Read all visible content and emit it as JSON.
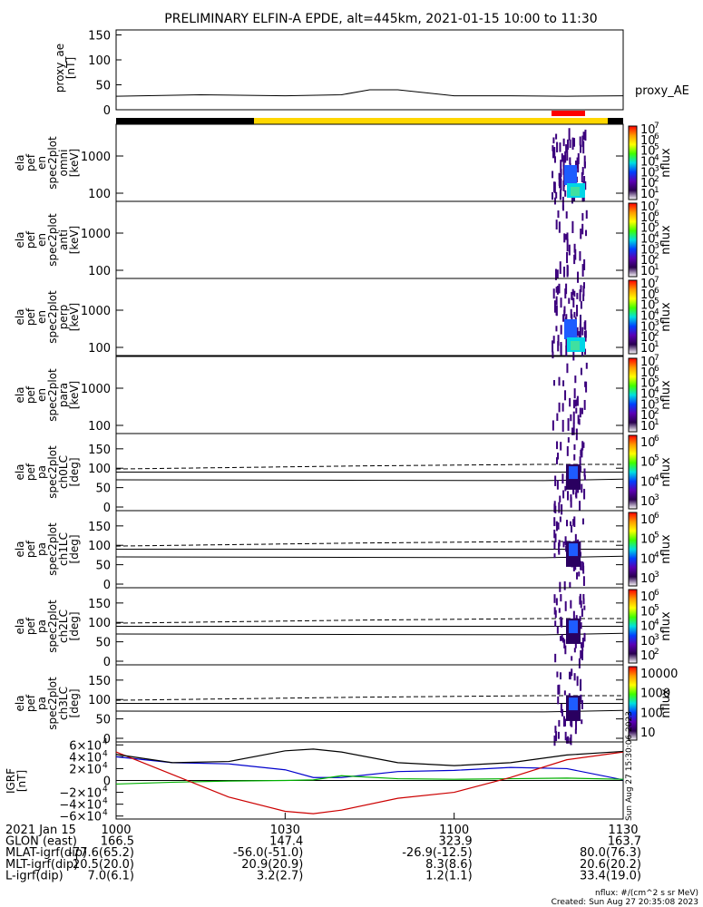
{
  "title": "PRELIMINARY ELFIN-A EPDE, alt=445km, 2021-01-15 10:00 to 11:30",
  "colors": {
    "spec_low": "#3b007d",
    "spec_mid": "#1e5cff",
    "spec_hi": "#00d5e6",
    "bar_black": "#000000",
    "bar_yellow": "#ffd700",
    "bar_red": "#ff0000",
    "bx": "#0000cc",
    "by": "#00b000",
    "bz": "#cc0000",
    "bmag": "#000000"
  },
  "proxy_ae": {
    "ylabel_lines": [
      "proxy_ae",
      "[nT]"
    ],
    "ticks": [
      "0",
      "50",
      "100",
      "150"
    ],
    "legend": "proxy_AE",
    "ylim": [
      0,
      160
    ]
  },
  "energy_panels": [
    {
      "label_lines": [
        "ela",
        "pef",
        "en",
        "spec2plot",
        "omni",
        "[keV]"
      ],
      "ticks": [
        "100",
        "1000"
      ],
      "cbar": {
        "mant": [
          "10",
          "10",
          "10",
          "10",
          "10",
          "10",
          "10"
        ],
        "exps": [
          "1",
          "2",
          "3",
          "4",
          "5",
          "6",
          "7"
        ],
        "label": "nflux"
      },
      "intensity": 1.0
    },
    {
      "label_lines": [
        "ela",
        "pef",
        "en",
        "spec2plot",
        "anti",
        "[keV]"
      ],
      "ticks": [
        "100",
        "1000"
      ],
      "cbar": {
        "mant": [
          "10",
          "10",
          "10",
          "10",
          "10",
          "10",
          "10"
        ],
        "exps": [
          "1",
          "2",
          "3",
          "4",
          "5",
          "6",
          "7"
        ],
        "label": "nflux"
      },
      "intensity": 0.25
    },
    {
      "label_lines": [
        "ela",
        "pef",
        "en",
        "spec2plot",
        "perp",
        "[keV]"
      ],
      "ticks": [
        "100",
        "1000"
      ],
      "cbar": {
        "mant": [
          "10",
          "10",
          "10",
          "10",
          "10",
          "10",
          "10"
        ],
        "exps": [
          "1",
          "2",
          "3",
          "4",
          "5",
          "6",
          "7"
        ],
        "label": "nflux"
      },
      "intensity": 0.95
    },
    {
      "label_lines": [
        "ela",
        "pef",
        "en",
        "spec2plot",
        "para",
        "[keV]"
      ],
      "ticks": [
        "100",
        "1000"
      ],
      "cbar": {
        "mant": [
          "10",
          "10",
          "10",
          "10",
          "10",
          "10",
          "10"
        ],
        "exps": [
          "1",
          "2",
          "3",
          "4",
          "5",
          "6",
          "7"
        ],
        "label": "nflux"
      },
      "intensity": 0.3
    }
  ],
  "pa_panels": [
    {
      "label_lines": [
        "ela",
        "pef",
        "pa",
        "spec2plot",
        "ch0LC",
        "[deg]"
      ],
      "ticks": [
        "0",
        "50",
        "100",
        "150"
      ],
      "cbar": {
        "mant": [
          "10",
          "10",
          "10",
          "10"
        ],
        "exps": [
          "3",
          "4",
          "5",
          "6"
        ],
        "label": "nflux"
      }
    },
    {
      "label_lines": [
        "ela",
        "pef",
        "pa",
        "spec2plot",
        "ch1LC",
        "[deg]"
      ],
      "ticks": [
        "0",
        "50",
        "100",
        "150"
      ],
      "cbar": {
        "mant": [
          "10",
          "10",
          "10",
          "10"
        ],
        "exps": [
          "3",
          "4",
          "5",
          "6"
        ],
        "label": "nflux"
      }
    },
    {
      "label_lines": [
        "ela",
        "pef",
        "pa",
        "spec2plot",
        "ch2LC",
        "[deg]"
      ],
      "ticks": [
        "0",
        "50",
        "100",
        "150"
      ],
      "cbar": {
        "mant": [
          "10",
          "10",
          "10",
          "10",
          "10"
        ],
        "exps": [
          "2",
          "3",
          "4",
          "5",
          "6"
        ],
        "label": "nflux"
      }
    },
    {
      "label_lines": [
        "ela",
        "pef",
        "pa",
        "spec2plot",
        "ch3LC",
        "[deg]"
      ],
      "ticks": [
        "0",
        "50",
        "100",
        "150"
      ],
      "cbar": {
        "plain": [
          "10",
          "100",
          "1000",
          "10000"
        ],
        "label": "nflux"
      }
    }
  ],
  "igrf": {
    "ylabel_lines": [
      "IGRF",
      "[nT]"
    ],
    "ticks": [
      {
        "m": "6×10",
        "e": "4"
      },
      {
        "m": "4×10",
        "e": "4"
      },
      {
        "m": "2×10",
        "e": "4"
      },
      {
        "m": "0",
        "e": ""
      },
      {
        "m": "−2×10",
        "e": "4"
      },
      {
        "m": "−4×10",
        "e": "4"
      },
      {
        "m": "−6×10",
        "e": "4"
      }
    ],
    "side_note": "Sun Aug 27 15:30:06 2023",
    "ylim": [
      -65000,
      65000
    ]
  },
  "x_axis": {
    "ticks": [
      "1000",
      "1030",
      "1100",
      "1130"
    ],
    "rows": [
      {
        "label": "2021 Jan 15",
        "vals": [
          "",
          "",
          "",
          ""
        ]
      },
      {
        "label": "GLON (east)",
        "vals": [
          "166.5",
          "147.4",
          "323.9",
          "163.7"
        ]
      },
      {
        "label": "MLAT-igrf(dip)",
        "vals": [
          "-77.6(65.2)",
          "-56.0(-51.0)",
          "-26.9(-12.5)",
          "80.0(76.3)"
        ]
      },
      {
        "label": "MLT-igrf(dip)",
        "vals": [
          "20.5(20.0)",
          "20.9(20.9)",
          "8.3(8.6)",
          "20.6(20.2)"
        ]
      },
      {
        "label": "L-igrf(dip)",
        "vals": [
          "7.0(6.1)",
          "3.2(2.7)",
          "1.2(1.1)",
          "33.4(19.0)"
        ]
      }
    ]
  },
  "footer": {
    "units": "nflux: #/(cm^2 s sr MeV)",
    "created": "Created: Sun Aug 27 20:35:08 2023"
  },
  "chart_data": {
    "type": "line",
    "title": "PRELIMINARY ELFIN-A EPDE, alt=445km, 2021-01-15 10:00 to 11:30",
    "x_ticks": [
      "1000",
      "1030",
      "1100",
      "1130"
    ],
    "proxy_ae": {
      "x": [
        "10:00",
        "10:15",
        "10:30",
        "10:40",
        "10:45",
        "10:50",
        "11:00",
        "11:10",
        "11:20",
        "11:30"
      ],
      "values": [
        27,
        30,
        28,
        30,
        40,
        40,
        28,
        28,
        27,
        28
      ]
    },
    "igrf_series": [
      {
        "values_x": [
          "10:00",
          "10:10",
          "10:20",
          "10:30",
          "10:35",
          "10:40",
          "10:50",
          "11:00",
          "11:10",
          "11:20",
          "11:30"
        ],
        "values": [
          40000,
          30000,
          28000,
          18000,
          5000,
          5000,
          15000,
          17000,
          22000,
          20000,
          1000
        ]
      },
      {
        "values_x": [
          "10:00",
          "10:10",
          "10:20",
          "10:30",
          "10:35",
          "10:40",
          "10:50",
          "11:00",
          "11:10",
          "11:20",
          "11:30"
        ],
        "values": [
          -6000,
          -3000,
          -1000,
          0,
          1000,
          8000,
          3000,
          2000,
          3000,
          4000,
          2000
        ]
      },
      {
        "values_x": [
          "10:00",
          "10:10",
          "10:20",
          "10:30",
          "10:35",
          "10:40",
          "10:50",
          "11:00",
          "11:10",
          "11:20",
          "11:30"
        ],
        "values": [
          48000,
          10000,
          -28000,
          -52000,
          -56000,
          -50000,
          -30000,
          -20000,
          5000,
          35000,
          48000
        ]
      },
      {
        "values_x": [
          "10:00",
          "10:10",
          "10:20",
          "10:30",
          "10:35",
          "10:40",
          "10:50",
          "11:00",
          "11:10",
          "11:20",
          "11:30"
        ],
        "values": [
          44000,
          30000,
          32000,
          50000,
          53000,
          48000,
          30000,
          25000,
          30000,
          43000,
          49000
        ]
      }
    ]
  }
}
